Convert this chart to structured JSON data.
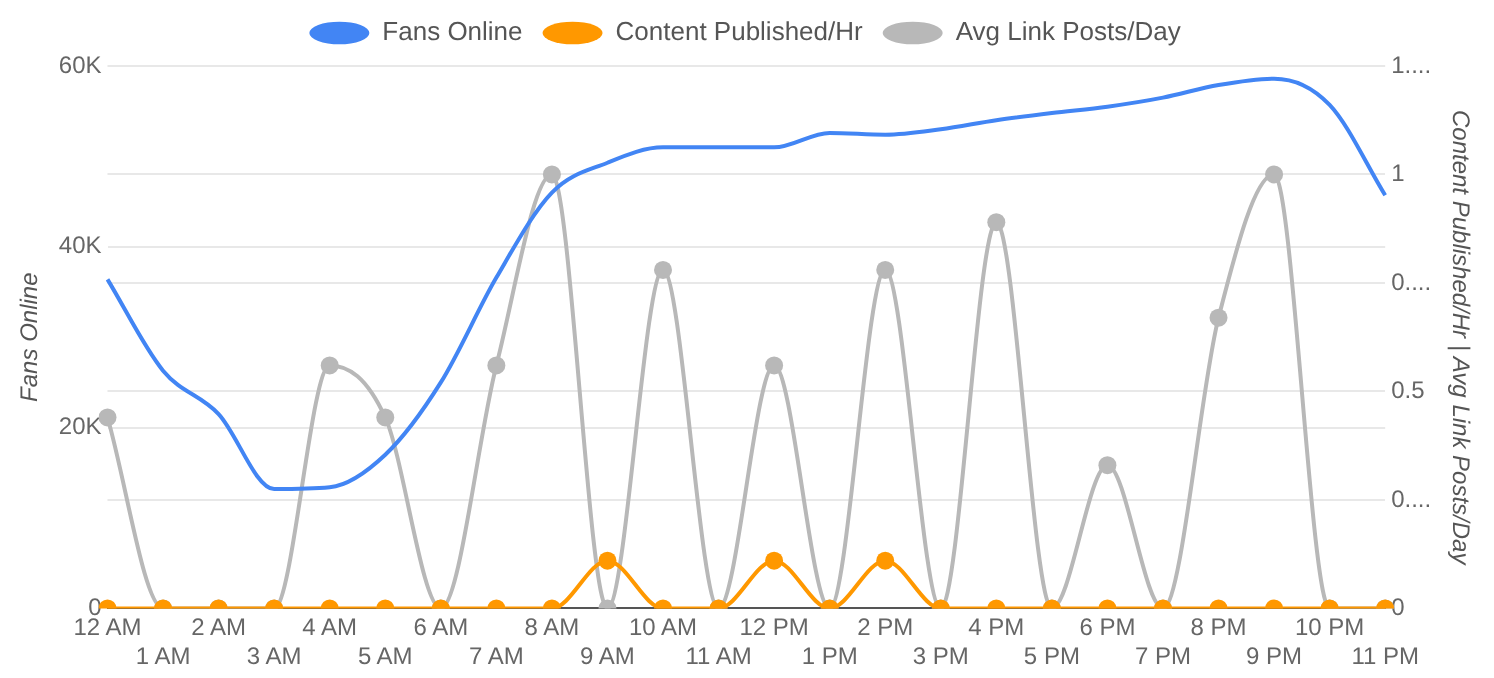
{
  "chart_data": {
    "type": "line",
    "ylabel": "Fans Online",
    "y2label": "Content Published/Hr | Avg Link Posts/Day",
    "categories": [
      "12 AM",
      "1 AM",
      "2 AM",
      "3 AM",
      "4 AM",
      "5 AM",
      "6 AM",
      "7 AM",
      "8 AM",
      "9 AM",
      "10 AM",
      "11 AM",
      "12 PM",
      "1 PM",
      "2 PM",
      "3 PM",
      "4 PM",
      "5 PM",
      "6 PM",
      "7 PM",
      "8 PM",
      "9 PM",
      "10 PM",
      "11 PM"
    ],
    "series": [
      {
        "name": "Fans Online",
        "color": "#4285f4",
        "marker": "none",
        "values": [
          36400,
          26300,
          21500,
          13200,
          13400,
          17000,
          25000,
          36600,
          46000,
          49300,
          51000,
          51000,
          51000,
          52600,
          52400,
          53000,
          54000,
          54800,
          55500,
          56500,
          57900,
          58600,
          55700,
          45700
        ]
      },
      {
        "name": "Content Published/Hr",
        "color": "#ff9800",
        "marker": "circle",
        "axis": "y2",
        "values": [
          0,
          0,
          0,
          0,
          0,
          0,
          0,
          0,
          0,
          0.11,
          0,
          0,
          0.11,
          0,
          0.11,
          0,
          0,
          0,
          0,
          0,
          0,
          0,
          0,
          0
        ]
      },
      {
        "name": "Avg Link Posts/Day",
        "color": "#b8b8b8",
        "marker": "circle",
        "axis": "y2",
        "values": [
          0.44,
          0,
          0,
          0,
          0.56,
          0.44,
          0,
          0.56,
          1,
          0,
          0.78,
          0,
          0.56,
          0,
          0.78,
          0,
          0.89,
          0,
          0.33,
          0,
          0.67,
          1,
          0,
          0
        ]
      }
    ],
    "ylim": [
      0,
      60000
    ],
    "yticks": [
      0,
      {
        "value": 20000,
        "label": "20K"
      },
      {
        "value": 40000,
        "label": "40K"
      },
      {
        "value": 60000,
        "label": "60K"
      }
    ],
    "y2lim": [
      0,
      1.25
    ],
    "y2ticks": [
      0,
      {
        "value": 0.25,
        "label": "0...."
      },
      0.5,
      {
        "value": 0.75,
        "label": "0...."
      },
      1,
      {
        "value": 1.25,
        "label": "1...."
      }
    ],
    "grid": "y",
    "legend": "top"
  }
}
